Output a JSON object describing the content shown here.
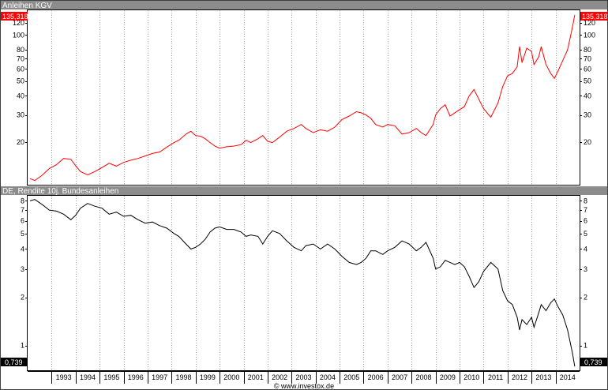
{
  "chart_data": [
    {
      "type": "line",
      "title": "Anleihen KGV",
      "yscale": "log",
      "ylim": [
        10.5,
        145
      ],
      "yticks": [
        20,
        30,
        40,
        50,
        60,
        70,
        80,
        100,
        120
      ],
      "last_value_label": "135,318",
      "grid": "vertical dotted at each year",
      "series": [
        {
          "name": "Anleihen KGV",
          "color": "#ff0000",
          "points": [
            [
              1992.1,
              11.5
            ],
            [
              1992.3,
              11.2
            ],
            [
              1992.6,
              12.1
            ],
            [
              1992.9,
              13.4
            ],
            [
              1993.2,
              14.2
            ],
            [
              1993.5,
              15.6
            ],
            [
              1993.8,
              15.4
            ],
            [
              1994.0,
              14.0
            ],
            [
              1994.2,
              12.8
            ],
            [
              1994.5,
              12.2
            ],
            [
              1994.8,
              12.8
            ],
            [
              1995.1,
              13.6
            ],
            [
              1995.4,
              14.5
            ],
            [
              1995.7,
              13.9
            ],
            [
              1996.0,
              14.7
            ],
            [
              1996.3,
              15.2
            ],
            [
              1996.6,
              15.6
            ],
            [
              1996.9,
              16.2
            ],
            [
              1997.2,
              16.8
            ],
            [
              1997.5,
              17.2
            ],
            [
              1997.8,
              18.5
            ],
            [
              1998.1,
              19.8
            ],
            [
              1998.3,
              20.5
            ],
            [
              1998.6,
              22.5
            ],
            [
              1998.8,
              23.5
            ],
            [
              1999.0,
              22.0
            ],
            [
              1999.2,
              21.8
            ],
            [
              1999.4,
              21.0
            ],
            [
              1999.6,
              19.8
            ],
            [
              1999.8,
              18.8
            ],
            [
              2000.0,
              18.2
            ],
            [
              2000.3,
              18.6
            ],
            [
              2000.6,
              18.8
            ],
            [
              2000.9,
              19.2
            ],
            [
              2001.1,
              20.5
            ],
            [
              2001.3,
              19.8
            ],
            [
              2001.6,
              21.0
            ],
            [
              2001.8,
              22.0
            ],
            [
              2002.0,
              20.2
            ],
            [
              2002.2,
              19.8
            ],
            [
              2002.5,
              21.5
            ],
            [
              2002.8,
              23.5
            ],
            [
              2003.1,
              24.5
            ],
            [
              2003.4,
              26.0
            ],
            [
              2003.6,
              24.5
            ],
            [
              2003.9,
              23.0
            ],
            [
              2004.2,
              24.0
            ],
            [
              2004.5,
              23.5
            ],
            [
              2004.8,
              25.0
            ],
            [
              2005.1,
              28.0
            ],
            [
              2005.4,
              29.5
            ],
            [
              2005.7,
              31.5
            ],
            [
              2005.9,
              31.0
            ],
            [
              2006.1,
              30.0
            ],
            [
              2006.3,
              28.5
            ],
            [
              2006.5,
              26.0
            ],
            [
              2006.8,
              25.0
            ],
            [
              2007.0,
              26.0
            ],
            [
              2007.3,
              25.5
            ],
            [
              2007.6,
              22.5
            ],
            [
              2007.9,
              23.0
            ],
            [
              2008.2,
              24.5
            ],
            [
              2008.4,
              23.0
            ],
            [
              2008.6,
              22.0
            ],
            [
              2008.9,
              26.0
            ],
            [
              2009.0,
              30.0
            ],
            [
              2009.2,
              33.0
            ],
            [
              2009.4,
              35.0
            ],
            [
              2009.6,
              29.5
            ],
            [
              2009.8,
              31.0
            ],
            [
              2010.0,
              32.5
            ],
            [
              2010.2,
              34.0
            ],
            [
              2010.4,
              40.0
            ],
            [
              2010.6,
              44.0
            ],
            [
              2010.8,
              38.0
            ],
            [
              2011.0,
              33.0
            ],
            [
              2011.3,
              29.0
            ],
            [
              2011.6,
              36.0
            ],
            [
              2011.8,
              46.0
            ],
            [
              2012.0,
              54.0
            ],
            [
              2012.2,
              56.0
            ],
            [
              2012.4,
              62.0
            ],
            [
              2012.5,
              84.0
            ],
            [
              2012.6,
              66.0
            ],
            [
              2012.8,
              82.0
            ],
            [
              2013.0,
              78.0
            ],
            [
              2013.1,
              64.0
            ],
            [
              2013.3,
              72.0
            ],
            [
              2013.4,
              84.0
            ],
            [
              2013.6,
              64.0
            ],
            [
              2013.8,
              56.0
            ],
            [
              2013.95,
              52.0
            ],
            [
              2014.1,
              58.0
            ],
            [
              2014.3,
              68.0
            ],
            [
              2014.5,
              80.0
            ],
            [
              2014.7,
              112.0
            ],
            [
              2014.8,
              135.318
            ]
          ]
        }
      ]
    },
    {
      "type": "line",
      "title": "DE, Rendite 10j. Bundesanleihen",
      "yscale": "log",
      "ylim": [
        0.7,
        8.6
      ],
      "yticks": [
        1,
        2,
        3,
        4,
        5,
        6,
        7,
        8
      ],
      "last_value_label": "0,739",
      "grid": "vertical dotted at each year",
      "xticks": [
        "1993",
        "1994",
        "1995",
        "1996",
        "1997",
        "1998",
        "1999",
        "2000",
        "2001",
        "2002",
        "2003",
        "2004",
        "2005",
        "2006",
        "2007",
        "2008",
        "2009",
        "2010",
        "2011",
        "2012",
        "2013",
        "2014"
      ],
      "series": [
        {
          "name": "DE, Rendite 10j. Bundesanleihen",
          "color": "#000000",
          "points": [
            [
              1992.1,
              8.0
            ],
            [
              1992.3,
              8.15
            ],
            [
              1992.6,
              7.6
            ],
            [
              1992.9,
              7.0
            ],
            [
              1993.2,
              6.9
            ],
            [
              1993.5,
              6.6
            ],
            [
              1993.8,
              6.1
            ],
            [
              1994.0,
              6.5
            ],
            [
              1994.2,
              7.2
            ],
            [
              1994.5,
              7.7
            ],
            [
              1994.8,
              7.4
            ],
            [
              1995.1,
              7.2
            ],
            [
              1995.4,
              6.6
            ],
            [
              1995.7,
              6.8
            ],
            [
              1996.0,
              6.4
            ],
            [
              1996.3,
              6.5
            ],
            [
              1996.6,
              6.1
            ],
            [
              1996.9,
              5.8
            ],
            [
              1997.2,
              5.9
            ],
            [
              1997.5,
              5.6
            ],
            [
              1997.8,
              5.4
            ],
            [
              1998.1,
              5.0
            ],
            [
              1998.3,
              4.8
            ],
            [
              1998.6,
              4.3
            ],
            [
              1998.8,
              4.0
            ],
            [
              1999.0,
              4.1
            ],
            [
              1999.2,
              4.3
            ],
            [
              1999.4,
              4.6
            ],
            [
              1999.6,
              5.1
            ],
            [
              1999.8,
              5.4
            ],
            [
              2000.0,
              5.5
            ],
            [
              2000.3,
              5.3
            ],
            [
              2000.6,
              5.3
            ],
            [
              2000.9,
              5.1
            ],
            [
              2001.1,
              4.8
            ],
            [
              2001.3,
              4.9
            ],
            [
              2001.6,
              4.8
            ],
            [
              2001.8,
              4.3
            ],
            [
              2002.0,
              4.8
            ],
            [
              2002.2,
              5.2
            ],
            [
              2002.5,
              5.0
            ],
            [
              2002.8,
              4.5
            ],
            [
              2003.1,
              4.1
            ],
            [
              2003.4,
              3.9
            ],
            [
              2003.6,
              4.2
            ],
            [
              2003.9,
              4.3
            ],
            [
              2004.2,
              4.0
            ],
            [
              2004.5,
              4.3
            ],
            [
              2004.8,
              4.0
            ],
            [
              2005.1,
              3.6
            ],
            [
              2005.4,
              3.3
            ],
            [
              2005.7,
              3.2
            ],
            [
              2005.9,
              3.3
            ],
            [
              2006.1,
              3.5
            ],
            [
              2006.3,
              3.9
            ],
            [
              2006.5,
              3.9
            ],
            [
              2006.8,
              3.7
            ],
            [
              2007.0,
              3.9
            ],
            [
              2007.3,
              4.1
            ],
            [
              2007.6,
              4.5
            ],
            [
              2007.9,
              4.3
            ],
            [
              2008.2,
              3.9
            ],
            [
              2008.4,
              4.1
            ],
            [
              2008.6,
              4.4
            ],
            [
              2008.9,
              3.5
            ],
            [
              2009.0,
              3.0
            ],
            [
              2009.2,
              3.1
            ],
            [
              2009.4,
              3.4
            ],
            [
              2009.6,
              3.3
            ],
            [
              2009.8,
              3.2
            ],
            [
              2010.0,
              3.3
            ],
            [
              2010.2,
              3.1
            ],
            [
              2010.4,
              2.7
            ],
            [
              2010.6,
              2.3
            ],
            [
              2010.8,
              2.5
            ],
            [
              2011.0,
              2.9
            ],
            [
              2011.3,
              3.3
            ],
            [
              2011.6,
              3.0
            ],
            [
              2011.8,
              2.2
            ],
            [
              2012.0,
              1.9
            ],
            [
              2012.2,
              1.8
            ],
            [
              2012.4,
              1.5
            ],
            [
              2012.5,
              1.25
            ],
            [
              2012.6,
              1.45
            ],
            [
              2012.8,
              1.35
            ],
            [
              2013.0,
              1.5
            ],
            [
              2013.1,
              1.3
            ],
            [
              2013.3,
              1.6
            ],
            [
              2013.4,
              1.8
            ],
            [
              2013.6,
              1.65
            ],
            [
              2013.8,
              1.85
            ],
            [
              2013.95,
              1.95
            ],
            [
              2014.1,
              1.75
            ],
            [
              2014.3,
              1.55
            ],
            [
              2014.5,
              1.25
            ],
            [
              2014.7,
              0.9
            ],
            [
              2014.8,
              0.739
            ]
          ]
        }
      ]
    }
  ],
  "credit": "© www.investox.de",
  "colors": {
    "panel_bar": "#8c8c8c",
    "badge_bg": "#ff0000",
    "badge_dark": "#000000"
  }
}
